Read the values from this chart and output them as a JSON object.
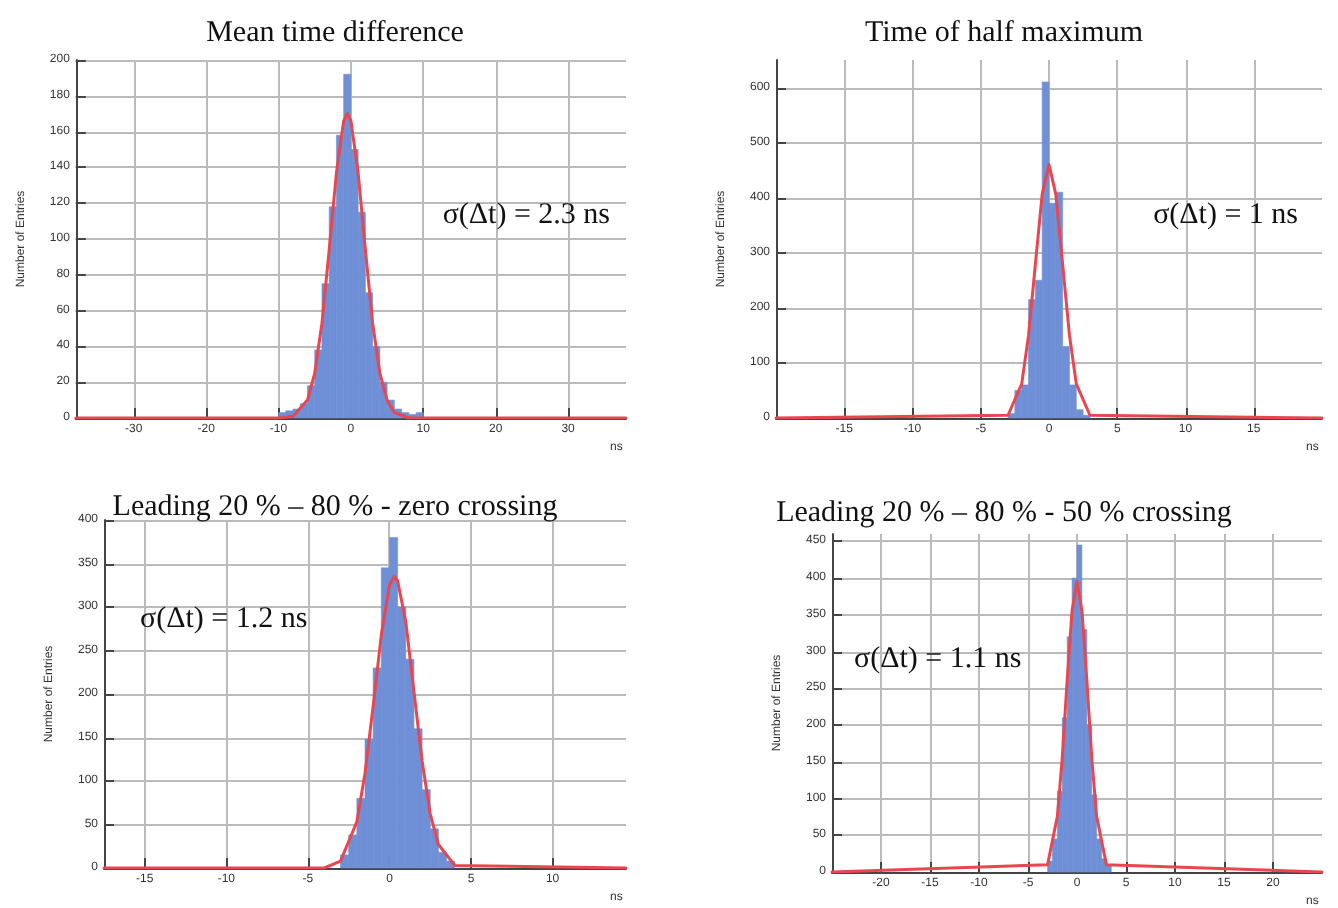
{
  "chart_data": [
    {
      "type": "histogram",
      "title": "Mean time difference",
      "xlabel": "ns",
      "ylabel": "Number of Entries",
      "xlim": [
        -38,
        38
      ],
      "xticks": [
        -30,
        -20,
        -10,
        0,
        10,
        20,
        30
      ],
      "ylim": [
        0,
        200
      ],
      "yticks": [
        0,
        20,
        40,
        60,
        80,
        100,
        120,
        140,
        160,
        180,
        200
      ],
      "grid": true,
      "annotations": [
        "σ(Δt) = 2.3 ns"
      ],
      "series": [
        {
          "type": "histogram",
          "color": "#6f8fd6",
          "bins": [
            -10,
            -9,
            -8,
            -7,
            -6,
            -5,
            -4,
            -3,
            -2,
            -1,
            0,
            1,
            2,
            3,
            4,
            5,
            6,
            7,
            8,
            9,
            10
          ],
          "values": [
            3,
            4,
            5,
            8,
            18,
            38,
            75,
            118,
            158,
            192,
            150,
            115,
            70,
            40,
            20,
            10,
            5,
            3,
            2,
            3
          ]
        },
        {
          "type": "line",
          "color": "#e8474f",
          "x": [
            -38,
            -10,
            -8,
            -6,
            -5,
            -4,
            -3,
            -2,
            -1,
            -0.5,
            0,
            1,
            2,
            3,
            4,
            5,
            6,
            8,
            38
          ],
          "values": [
            0,
            0,
            1,
            10,
            25,
            53,
            94,
            137,
            166,
            170,
            166,
            137,
            94,
            53,
            25,
            10,
            3,
            0,
            0
          ]
        }
      ]
    },
    {
      "type": "histogram",
      "title": "Time of half maximum",
      "xlabel": "ns",
      "ylabel": "Number of Entries",
      "xlim": [
        -20,
        20
      ],
      "xticks": [
        -15,
        -10,
        -5,
        0,
        5,
        10,
        15
      ],
      "ylim": [
        0,
        650
      ],
      "yticks": [
        0,
        100,
        200,
        300,
        400,
        500,
        600
      ],
      "grid": true,
      "annotations": [
        "σ(Δt) = 1 ns"
      ],
      "series": [
        {
          "type": "histogram",
          "color": "#6f8fd6",
          "bins": [
            -3,
            -2.5,
            -2,
            -1.5,
            -1,
            -0.5,
            0,
            0.5,
            1,
            1.5,
            2,
            2.5,
            3
          ],
          "values": [
            8,
            50,
            60,
            215,
            250,
            610,
            390,
            410,
            130,
            60,
            15,
            5
          ]
        },
        {
          "type": "line",
          "color": "#e8474f",
          "x": [
            -20,
            -3,
            -2,
            -1.5,
            -1,
            -0.5,
            0,
            0.5,
            1,
            1.5,
            2,
            3,
            20
          ],
          "values": [
            0,
            5,
            62,
            150,
            279,
            406,
            460,
            406,
            279,
            150,
            62,
            5,
            0
          ]
        }
      ]
    },
    {
      "type": "histogram",
      "title": "Leading 20 % – 80 % - zero crossing",
      "xlabel": "ns",
      "ylabel": "Number of Entries",
      "xlim": [
        -17.5,
        14.5
      ],
      "xticks": [
        -15,
        -10,
        -5,
        0,
        5,
        10
      ],
      "ylim": [
        0,
        400
      ],
      "yticks": [
        0,
        50,
        100,
        150,
        200,
        250,
        300,
        350,
        400
      ],
      "grid": true,
      "annotations": [
        "σ(Δt) = 1.2 ns"
      ],
      "series": [
        {
          "type": "histogram",
          "color": "#6f8fd6",
          "bins": [
            -3,
            -2.5,
            -2,
            -1.5,
            -1,
            -0.5,
            0,
            0.5,
            1,
            1.5,
            2,
            2.5,
            3,
            3.5,
            4
          ],
          "values": [
            15,
            38,
            80,
            148,
            230,
            345,
            380,
            300,
            240,
            160,
            90,
            45,
            18,
            8
          ]
        },
        {
          "type": "line",
          "color": "#e8474f",
          "x": [
            -17.5,
            -4,
            -3,
            -2,
            -1.5,
            -1,
            -0.5,
            0,
            0.3,
            0.5,
            1,
            1.5,
            2,
            2.5,
            3,
            4,
            14.5
          ],
          "values": [
            0,
            0,
            8,
            53,
            109,
            186,
            268,
            325,
            335,
            330,
            283,
            203,
            123,
            62,
            27,
            3,
            0
          ]
        }
      ]
    },
    {
      "type": "histogram",
      "title": "Leading 20 % – 80 % - 50 % crossing",
      "xlabel": "ns",
      "ylabel": "Number of Entries",
      "xlim": [
        -25,
        25
      ],
      "xticks": [
        -20,
        -15,
        -10,
        -5,
        0,
        5,
        10,
        15,
        20
      ],
      "ylim": [
        0,
        460
      ],
      "yticks": [
        0,
        50,
        100,
        150,
        200,
        250,
        300,
        350,
        400,
        450
      ],
      "grid": true,
      "annotations": [
        "σ(Δt) = 1.1 ns"
      ],
      "series": [
        {
          "type": "histogram",
          "color": "#6f8fd6",
          "bins": [
            -3,
            -2.5,
            -2,
            -1.5,
            -1,
            -0.5,
            0,
            0.5,
            1,
            1.5,
            2,
            2.5,
            3,
            3.5
          ],
          "values": [
            15,
            45,
            110,
            210,
            320,
            400,
            445,
            330,
            200,
            105,
            45,
            18,
            10
          ]
        },
        {
          "type": "line",
          "color": "#e8474f",
          "x": [
            -25,
            -3,
            -2,
            -1.5,
            -1,
            -0.5,
            0,
            0.5,
            1,
            1.5,
            2,
            3,
            25
          ],
          "values": [
            0,
            10,
            76,
            156,
            262,
            356,
            395,
            356,
            262,
            156,
            76,
            10,
            0
          ]
        }
      ]
    }
  ]
}
